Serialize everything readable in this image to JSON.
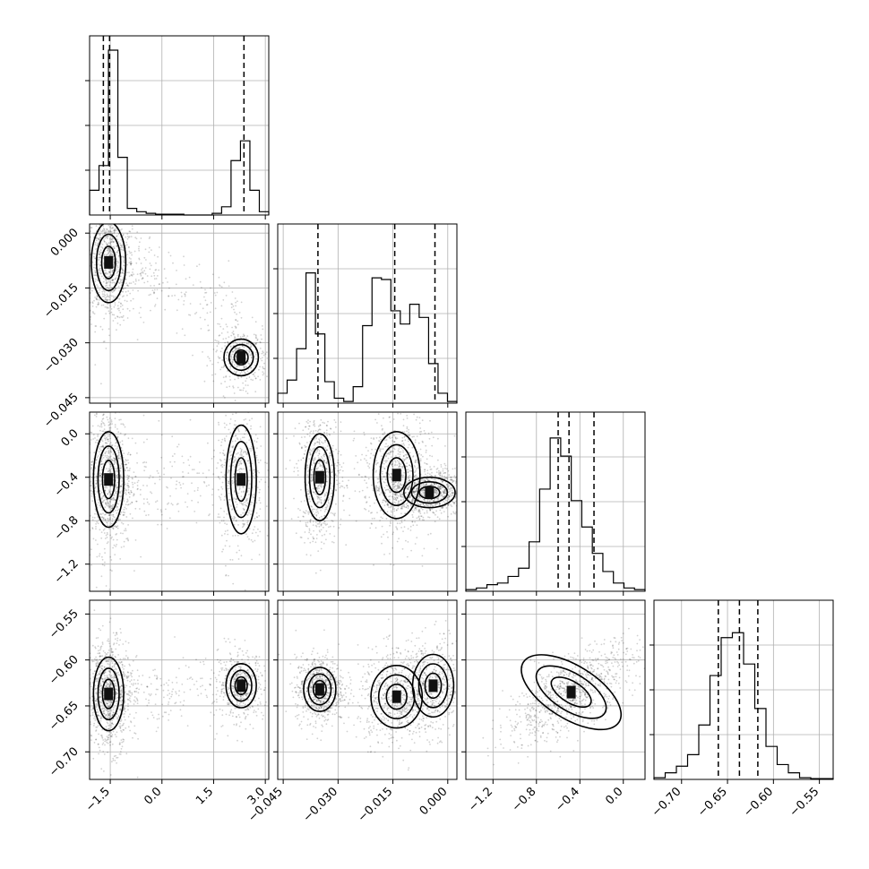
{
  "chart_data": {
    "type": "corner",
    "n_params": 4,
    "grid": true,
    "params": [
      {
        "ticks": [
          -1.5,
          0.0,
          1.5,
          3.0
        ],
        "tick_labels": [
          "−1.5",
          "0.0",
          "1.5",
          "3.0"
        ],
        "range": [
          -2.1,
          3.1
        ],
        "quantiles": [
          -1.7,
          -1.52,
          2.38
        ]
      },
      {
        "ticks": [
          -0.045,
          -0.03,
          -0.015,
          0.0
        ],
        "tick_labels": [
          "−0.045",
          "−0.030",
          "−0.015",
          "0.000"
        ],
        "range": [
          -0.0465,
          0.0025
        ],
        "quantiles": [
          -0.0355,
          -0.0145,
          -0.0035
        ]
      },
      {
        "ticks": [
          -1.2,
          -0.8,
          -0.4,
          0.0
        ],
        "tick_labels": [
          "−1.2",
          "−0.8",
          "−0.4",
          "0.0"
        ],
        "range": [
          -1.45,
          0.2
        ],
        "quantiles": [
          -0.6,
          -0.5,
          -0.27
        ]
      },
      {
        "ticks": [
          -0.7,
          -0.65,
          -0.6,
          -0.55
        ],
        "tick_labels": [
          "−0.70",
          "−0.65",
          "−0.60",
          "−0.55"
        ],
        "range": [
          -0.73,
          -0.535
        ],
        "quantiles": [
          -0.66,
          -0.637,
          -0.617
        ]
      }
    ],
    "histograms": [
      [
        0.15,
        0.3,
        1.0,
        0.35,
        0.04,
        0.02,
        0.01,
        0.005,
        0.005,
        0.005,
        0,
        0,
        0,
        0.01,
        0.05,
        0.33,
        0.45,
        0.15,
        0.02
      ],
      [
        0.06,
        0.14,
        0.33,
        0.79,
        0.42,
        0.13,
        0.03,
        0.01,
        0.1,
        0.47,
        0.76,
        0.75,
        0.56,
        0.48,
        0.6,
        0.52,
        0.24,
        0.06,
        0.01
      ],
      [
        0.01,
        0.02,
        0.04,
        0.05,
        0.09,
        0.14,
        0.3,
        0.62,
        0.93,
        0.82,
        0.55,
        0.39,
        0.23,
        0.12,
        0.05,
        0.02,
        0.01
      ],
      [
        0.01,
        0.04,
        0.08,
        0.15,
        0.33,
        0.63,
        0.86,
        0.89,
        0.7,
        0.43,
        0.2,
        0.09,
        0.04,
        0.01,
        0.005,
        0.005
      ]
    ],
    "modes": [
      {
        "i": 1,
        "j": 0,
        "blobs": [
          {
            "x": -1.55,
            "y": -0.008,
            "sx": 0.25,
            "sy": 0.0055,
            "w": 1.0
          },
          {
            "x": 2.3,
            "y": -0.034,
            "sx": 0.25,
            "sy": 0.0025,
            "w": 0.45
          }
        ]
      },
      {
        "i": 2,
        "j": 0,
        "blobs": [
          {
            "x": -1.55,
            "y": -0.42,
            "sx": 0.22,
            "sy": 0.22,
            "w": 1.0
          },
          {
            "x": 2.3,
            "y": -0.42,
            "sx": 0.22,
            "sy": 0.25,
            "w": 0.5
          }
        ]
      },
      {
        "i": 3,
        "j": 0,
        "blobs": [
          {
            "x": -1.55,
            "y": -0.637,
            "sx": 0.22,
            "sy": 0.02,
            "w": 1.0
          },
          {
            "x": 2.3,
            "y": -0.628,
            "sx": 0.22,
            "sy": 0.012,
            "w": 0.5
          }
        ]
      },
      {
        "i": 2,
        "j": 1,
        "blobs": [
          {
            "x": -0.035,
            "y": -0.4,
            "sx": 0.002,
            "sy": 0.2,
            "w": 0.7
          },
          {
            "x": -0.014,
            "y": -0.38,
            "sx": 0.0032,
            "sy": 0.2,
            "w": 0.8
          },
          {
            "x": -0.005,
            "y": -0.54,
            "sx": 0.0035,
            "sy": 0.07,
            "w": 0.9
          }
        ]
      },
      {
        "i": 3,
        "j": 1,
        "blobs": [
          {
            "x": -0.035,
            "y": -0.632,
            "sx": 0.0022,
            "sy": 0.012,
            "w": 0.8
          },
          {
            "x": -0.014,
            "y": -0.64,
            "sx": 0.0035,
            "sy": 0.017,
            "w": 0.7
          },
          {
            "x": -0.004,
            "y": -0.628,
            "sx": 0.0028,
            "sy": 0.017,
            "w": 0.55
          }
        ]
      },
      {
        "i": 3,
        "j": 2,
        "blobs": [
          {
            "x": -0.48,
            "y": -0.635,
            "sx": 0.2,
            "sy": 0.018,
            "rho": 0.7,
            "w": 1.0
          }
        ]
      }
    ]
  }
}
